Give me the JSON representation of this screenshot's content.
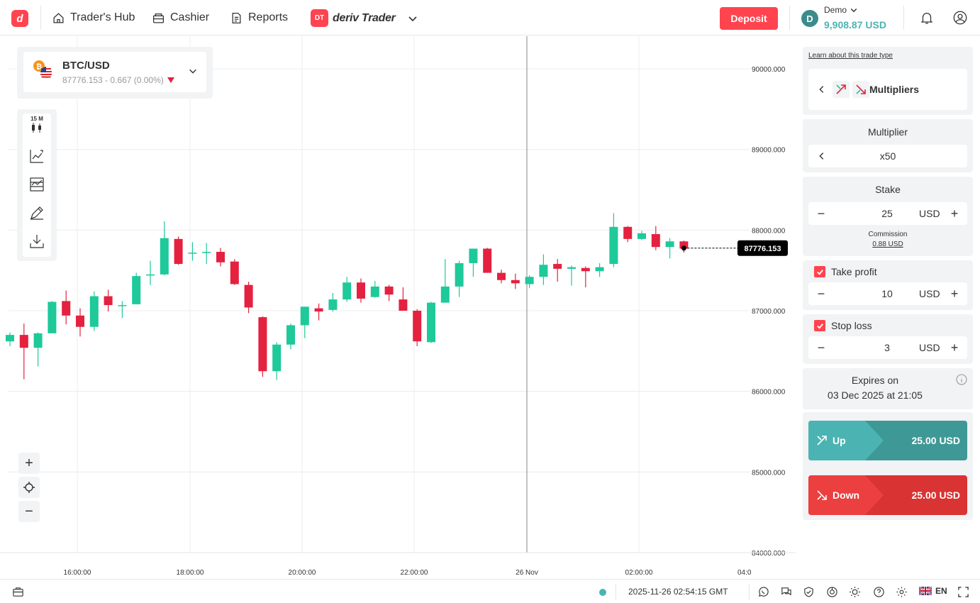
{
  "header": {
    "logo": "d",
    "nav": [
      {
        "label": "Trader's Hub",
        "icon": "home-icon"
      },
      {
        "label": "Cashier",
        "icon": "cashier-icon"
      },
      {
        "label": "Reports",
        "icon": "reports-icon"
      }
    ],
    "platform_badge": "DT",
    "platform_name": "deriv Trader",
    "deposit_label": "Deposit",
    "account_type": "Demo",
    "balance": "9,908.87 USD",
    "account_icon": "D"
  },
  "symbol": {
    "name": "BTC/USD",
    "price_change": "87776.153 - 0.667 (0.00%)"
  },
  "toolbar": {
    "timeframe": "15 M"
  },
  "chart_data": {
    "type": "candlestick",
    "ylim": [
      83900,
      90450
    ],
    "y_ticks": [
      "90000.000",
      "89000.000",
      "88000.000",
      "87000.000",
      "86000.000",
      "85000.000",
      "84000.000"
    ],
    "y_tick_values": [
      90000,
      89000,
      88000,
      87000,
      86000,
      85000,
      84000
    ],
    "x_ticks": [
      "16:00:00",
      "18:00:00",
      "20:00:00",
      "22:00:00",
      "26 Nov",
      "02:00:00",
      "04:0"
    ],
    "current_price_label": "87776.153",
    "candles": [
      {
        "o": 86620,
        "h": 86730,
        "l": 86560,
        "c": 86700
      },
      {
        "o": 86700,
        "h": 86840,
        "l": 86150,
        "c": 86540
      },
      {
        "o": 86540,
        "h": 86730,
        "l": 86310,
        "c": 86720
      },
      {
        "o": 86720,
        "h": 87120,
        "l": 86720,
        "c": 87110
      },
      {
        "o": 87120,
        "h": 87250,
        "l": 86830,
        "c": 86940
      },
      {
        "o": 86940,
        "h": 87030,
        "l": 86680,
        "c": 86800
      },
      {
        "o": 86800,
        "h": 87240,
        "l": 86750,
        "c": 87180
      },
      {
        "o": 87180,
        "h": 87260,
        "l": 86990,
        "c": 87070
      },
      {
        "o": 87060,
        "h": 87120,
        "l": 86910,
        "c": 87070
      },
      {
        "o": 87080,
        "h": 87470,
        "l": 87080,
        "c": 87430
      },
      {
        "o": 87440,
        "h": 87620,
        "l": 87320,
        "c": 87450
      },
      {
        "o": 87450,
        "h": 88110,
        "l": 87440,
        "c": 87900
      },
      {
        "o": 87890,
        "h": 87920,
        "l": 87570,
        "c": 87580
      },
      {
        "o": 87720,
        "h": 87850,
        "l": 87620,
        "c": 87720
      },
      {
        "o": 87720,
        "h": 87840,
        "l": 87580,
        "c": 87730
      },
      {
        "o": 87730,
        "h": 87780,
        "l": 87550,
        "c": 87600
      },
      {
        "o": 87610,
        "h": 87640,
        "l": 87320,
        "c": 87330
      },
      {
        "o": 87320,
        "h": 87360,
        "l": 86970,
        "c": 87040
      },
      {
        "o": 86920,
        "h": 86930,
        "l": 86180,
        "c": 86250
      },
      {
        "o": 86250,
        "h": 86610,
        "l": 86140,
        "c": 86580
      },
      {
        "o": 86580,
        "h": 86840,
        "l": 86520,
        "c": 86820
      },
      {
        "o": 86820,
        "h": 87050,
        "l": 86660,
        "c": 87050
      },
      {
        "o": 87030,
        "h": 87090,
        "l": 86880,
        "c": 86990
      },
      {
        "o": 87010,
        "h": 87220,
        "l": 86990,
        "c": 87140
      },
      {
        "o": 87140,
        "h": 87420,
        "l": 87110,
        "c": 87350
      },
      {
        "o": 87350,
        "h": 87400,
        "l": 87100,
        "c": 87150
      },
      {
        "o": 87170,
        "h": 87370,
        "l": 87160,
        "c": 87300
      },
      {
        "o": 87300,
        "h": 87320,
        "l": 87120,
        "c": 87200
      },
      {
        "o": 87140,
        "h": 87290,
        "l": 87020,
        "c": 87000
      },
      {
        "o": 87000,
        "h": 87020,
        "l": 86560,
        "c": 86620
      },
      {
        "o": 86610,
        "h": 87110,
        "l": 86600,
        "c": 87100
      },
      {
        "o": 87100,
        "h": 87640,
        "l": 87100,
        "c": 87300
      },
      {
        "o": 87300,
        "h": 87620,
        "l": 87170,
        "c": 87590
      },
      {
        "o": 87590,
        "h": 87750,
        "l": 87420,
        "c": 87770
      },
      {
        "o": 87770,
        "h": 87780,
        "l": 87470,
        "c": 87470
      },
      {
        "o": 87470,
        "h": 87510,
        "l": 87340,
        "c": 87380
      },
      {
        "o": 87380,
        "h": 87460,
        "l": 87270,
        "c": 87340
      },
      {
        "o": 87330,
        "h": 87440,
        "l": 87280,
        "c": 87420
      },
      {
        "o": 87420,
        "h": 87700,
        "l": 87320,
        "c": 87570
      },
      {
        "o": 87580,
        "h": 87640,
        "l": 87360,
        "c": 87520
      },
      {
        "o": 87520,
        "h": 87560,
        "l": 87310,
        "c": 87540
      },
      {
        "o": 87530,
        "h": 87550,
        "l": 87290,
        "c": 87490
      },
      {
        "o": 87490,
        "h": 87590,
        "l": 87420,
        "c": 87540
      },
      {
        "o": 87580,
        "h": 88210,
        "l": 87540,
        "c": 88040
      },
      {
        "o": 88040,
        "h": 88050,
        "l": 87850,
        "c": 87890
      },
      {
        "o": 87890,
        "h": 87990,
        "l": 87880,
        "c": 87960
      },
      {
        "o": 87950,
        "h": 88050,
        "l": 87750,
        "c": 87790
      },
      {
        "o": 87790,
        "h": 87900,
        "l": 87650,
        "c": 87860
      },
      {
        "o": 87860,
        "h": 87870,
        "l": 87720,
        "c": 87770
      }
    ]
  },
  "panel": {
    "learn_label": "Learn about this trade type",
    "trade_type": "Multipliers",
    "multiplier_label": "Multiplier",
    "multiplier_value": "x50",
    "stake_label": "Stake",
    "stake_value": "25",
    "currency": "USD",
    "commission_label": "Commission",
    "commission_value": "0.88 USD",
    "take_profit_label": "Take profit",
    "take_profit_value": "10",
    "stop_loss_label": "Stop loss",
    "stop_loss_value": "3",
    "expires_label": "Expires on",
    "expires_value": "03 Dec 2025 at 21:05",
    "up_label": "Up",
    "up_amount": "25.00 USD",
    "down_label": "Down",
    "down_amount": "25.00 USD",
    "colors": {
      "up": "#4bb4b3",
      "down": "#ec3f3f",
      "bull": "#1ec99a",
      "bear": "#e4213f",
      "brand": "#ff444f"
    }
  },
  "footer": {
    "datetime": "2025-11-26 02:54:15 GMT",
    "language": "EN"
  }
}
